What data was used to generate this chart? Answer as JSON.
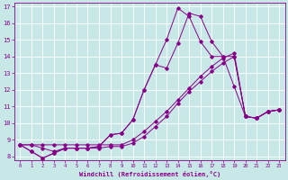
{
  "xlabel": "Windchill (Refroidissement éolien,°C)",
  "xlim": [
    -0.5,
    23.5
  ],
  "ylim": [
    7.8,
    17.2
  ],
  "xticks": [
    0,
    1,
    2,
    3,
    4,
    5,
    6,
    7,
    8,
    9,
    10,
    11,
    12,
    13,
    14,
    15,
    16,
    17,
    18,
    19,
    20,
    21,
    22,
    23
  ],
  "yticks": [
    8,
    9,
    10,
    11,
    12,
    13,
    14,
    15,
    16,
    17
  ],
  "bg_color": "#c8e8e8",
  "line_color": "#880088",
  "grid_color": "#ffffff",
  "lines": [
    {
      "x": [
        0,
        1,
        2,
        3,
        4,
        5,
        6,
        7,
        8,
        9,
        10,
        11,
        12,
        13,
        14,
        15,
        16,
        17,
        18,
        19,
        20,
        21,
        22,
        23
      ],
      "y": [
        8.7,
        8.7,
        8.7,
        8.7,
        8.7,
        8.7,
        8.7,
        8.7,
        8.7,
        8.7,
        9.0,
        9.5,
        10.1,
        10.7,
        11.4,
        12.1,
        12.8,
        13.4,
        13.9,
        14.2,
        10.4,
        10.3,
        10.7,
        10.8
      ]
    },
    {
      "x": [
        0,
        1,
        2,
        3,
        4,
        5,
        6,
        7,
        8,
        9,
        10,
        11,
        12,
        13,
        14,
        15,
        16,
        17,
        18,
        19,
        20,
        21,
        22,
        23
      ],
      "y": [
        8.7,
        8.3,
        7.9,
        8.2,
        8.5,
        8.5,
        8.5,
        8.6,
        9.3,
        9.4,
        10.2,
        12.0,
        13.5,
        15.0,
        16.9,
        16.4,
        14.9,
        14.0,
        14.0,
        12.2,
        10.4,
        10.3,
        10.7,
        10.8
      ]
    },
    {
      "x": [
        0,
        1,
        2,
        3,
        4,
        5,
        6,
        7,
        8,
        9,
        10,
        11,
        12,
        13,
        14,
        15,
        16,
        17,
        18,
        19,
        20,
        21,
        22,
        23
      ],
      "y": [
        8.7,
        8.3,
        7.9,
        8.2,
        8.5,
        8.5,
        8.5,
        8.6,
        9.3,
        9.4,
        10.2,
        12.0,
        13.5,
        13.3,
        14.8,
        16.6,
        16.4,
        14.9,
        14.0,
        14.0,
        10.4,
        10.3,
        10.7,
        10.8
      ]
    },
    {
      "x": [
        0,
        1,
        2,
        3,
        4,
        5,
        6,
        7,
        8,
        9,
        10,
        11,
        12,
        13,
        14,
        15,
        16,
        17,
        18,
        19,
        20,
        21,
        22,
        23
      ],
      "y": [
        8.7,
        8.7,
        8.5,
        8.3,
        8.5,
        8.5,
        8.5,
        8.5,
        8.6,
        8.6,
        8.8,
        9.2,
        9.8,
        10.4,
        11.2,
        11.9,
        12.5,
        13.1,
        13.6,
        14.0,
        10.4,
        10.3,
        10.7,
        10.8
      ]
    }
  ]
}
